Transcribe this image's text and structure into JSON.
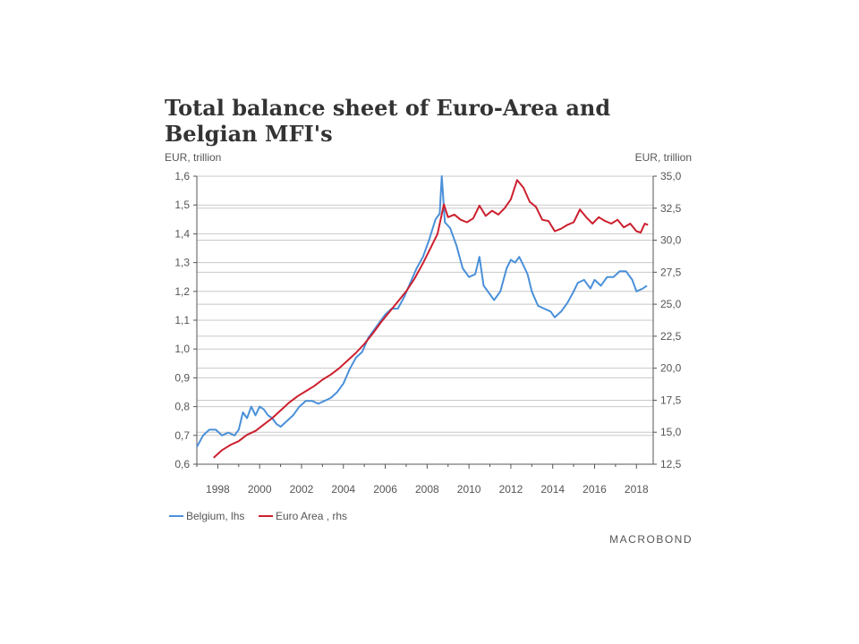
{
  "chart_data": {
    "type": "line",
    "title": "Total balance sheet of Euro-Area and Belgian MFI's",
    "ylabel_left": "EUR, trillion",
    "ylabel_right": "EUR, trillion",
    "xlim": [
      1997.0,
      2018.8
    ],
    "ylim_left": [
      0.6,
      1.6
    ],
    "ylim_right": [
      12.5,
      35.0
    ],
    "x_ticks": [
      1998,
      2000,
      2002,
      2004,
      2006,
      2008,
      2010,
      2012,
      2014,
      2016,
      2018
    ],
    "x_tick_labels": [
      "1998",
      "2000",
      "2002",
      "2004",
      "2006",
      "2008",
      "2010",
      "2012",
      "2014",
      "2016",
      "2018"
    ],
    "y_ticks_left": [
      0.6,
      0.7,
      0.8,
      0.9,
      1.0,
      1.1,
      1.2,
      1.3,
      1.4,
      1.5,
      1.6
    ],
    "y_tick_labels_left": [
      "0,6",
      "0,7",
      "0,8",
      "0,9",
      "1,0",
      "1,1",
      "1,2",
      "1,3",
      "1,4",
      "1,5",
      "1,6"
    ],
    "y_ticks_right": [
      12.5,
      15.0,
      17.5,
      20.0,
      22.5,
      25.0,
      27.5,
      30.0,
      32.5,
      35.0
    ],
    "y_tick_labels_right": [
      "12,5",
      "15,0",
      "17,5",
      "20,0",
      "22,5",
      "25,0",
      "27,5",
      "30,0",
      "32,5",
      "35,0"
    ],
    "grid": "horizontal",
    "legend_position": "bottom-left",
    "series": [
      {
        "name": "Belgium, lhs",
        "axis": "left",
        "color": "#4a90d9",
        "x": [
          1997.0,
          1997.3,
          1997.6,
          1997.9,
          1998.2,
          1998.5,
          1998.8,
          1999.0,
          1999.2,
          1999.4,
          1999.6,
          1999.8,
          2000.0,
          2000.2,
          2000.4,
          2000.6,
          2000.8,
          2001.0,
          2001.3,
          2001.6,
          2001.9,
          2002.2,
          2002.5,
          2002.8,
          2003.1,
          2003.4,
          2003.7,
          2004.0,
          2004.3,
          2004.6,
          2004.9,
          2005.2,
          2005.5,
          2005.8,
          2006.0,
          2006.3,
          2006.6,
          2006.9,
          2007.2,
          2007.5,
          2007.8,
          2008.1,
          2008.4,
          2008.6,
          2008.7,
          2008.85,
          2009.1,
          2009.4,
          2009.7,
          2010.0,
          2010.3,
          2010.5,
          2010.7,
          2010.9,
          2011.2,
          2011.5,
          2011.8,
          2012.0,
          2012.2,
          2012.4,
          2012.6,
          2012.8,
          2013.0,
          2013.3,
          2013.6,
          2013.9,
          2014.1,
          2014.4,
          2014.7,
          2015.0,
          2015.2,
          2015.5,
          2015.8,
          2016.0,
          2016.3,
          2016.6,
          2016.9,
          2017.2,
          2017.5,
          2017.8,
          2018.0,
          2018.3,
          2018.5
        ],
        "values": [
          0.66,
          0.7,
          0.72,
          0.72,
          0.7,
          0.71,
          0.7,
          0.72,
          0.78,
          0.76,
          0.8,
          0.77,
          0.8,
          0.79,
          0.77,
          0.76,
          0.74,
          0.73,
          0.75,
          0.77,
          0.8,
          0.82,
          0.82,
          0.81,
          0.82,
          0.83,
          0.85,
          0.88,
          0.93,
          0.97,
          0.99,
          1.04,
          1.07,
          1.1,
          1.12,
          1.14,
          1.14,
          1.18,
          1.23,
          1.28,
          1.32,
          1.38,
          1.45,
          1.47,
          1.6,
          1.44,
          1.42,
          1.36,
          1.28,
          1.25,
          1.26,
          1.32,
          1.22,
          1.2,
          1.17,
          1.2,
          1.28,
          1.31,
          1.3,
          1.32,
          1.29,
          1.26,
          1.2,
          1.15,
          1.14,
          1.13,
          1.11,
          1.13,
          1.16,
          1.2,
          1.23,
          1.24,
          1.21,
          1.24,
          1.22,
          1.25,
          1.25,
          1.27,
          1.27,
          1.24,
          1.2,
          1.21,
          1.22
        ]
      },
      {
        "name": "Euro Area , rhs",
        "axis": "right",
        "color": "#cc1f2e",
        "x": [
          1997.8,
          1998.2,
          1998.6,
          1999.0,
          1999.4,
          1999.8,
          2000.2,
          2000.6,
          2001.0,
          2001.4,
          2001.8,
          2002.2,
          2002.6,
          2003.0,
          2003.4,
          2003.8,
          2004.2,
          2004.6,
          2005.0,
          2005.4,
          2005.8,
          2006.2,
          2006.6,
          2007.0,
          2007.4,
          2007.8,
          2008.2,
          2008.5,
          2008.8,
          2009.0,
          2009.3,
          2009.6,
          2009.9,
          2010.2,
          2010.5,
          2010.8,
          2011.1,
          2011.4,
          2011.7,
          2012.0,
          2012.3,
          2012.6,
          2012.9,
          2013.2,
          2013.5,
          2013.8,
          2014.1,
          2014.4,
          2014.7,
          2015.0,
          2015.3,
          2015.6,
          2015.9,
          2016.2,
          2016.5,
          2016.8,
          2017.1,
          2017.4,
          2017.7,
          2018.0,
          2018.2,
          2018.4,
          2018.55
        ],
        "values": [
          13.0,
          13.6,
          14.0,
          14.3,
          14.8,
          15.1,
          15.6,
          16.1,
          16.7,
          17.3,
          17.8,
          18.2,
          18.6,
          19.1,
          19.5,
          20.0,
          20.6,
          21.2,
          21.9,
          22.7,
          23.6,
          24.4,
          25.2,
          26.0,
          27.0,
          28.2,
          29.5,
          30.5,
          32.8,
          31.8,
          32.0,
          31.6,
          31.4,
          31.7,
          32.7,
          31.9,
          32.3,
          32.0,
          32.5,
          33.2,
          34.7,
          34.1,
          33.0,
          32.6,
          31.6,
          31.5,
          30.7,
          30.9,
          31.2,
          31.4,
          32.4,
          31.8,
          31.3,
          31.8,
          31.5,
          31.3,
          31.6,
          31.0,
          31.3,
          30.7,
          30.6,
          31.3,
          31.2
        ]
      }
    ]
  },
  "legend": {
    "items": [
      {
        "label": "Belgium, lhs",
        "color": "#4a90d9"
      },
      {
        "label": "Euro Area , rhs",
        "color": "#cc1f2e"
      }
    ]
  },
  "brand": "MACROBOND",
  "colors": {
    "grid": "#c8c8c8",
    "axis": "#555555",
    "title": "#333333"
  }
}
